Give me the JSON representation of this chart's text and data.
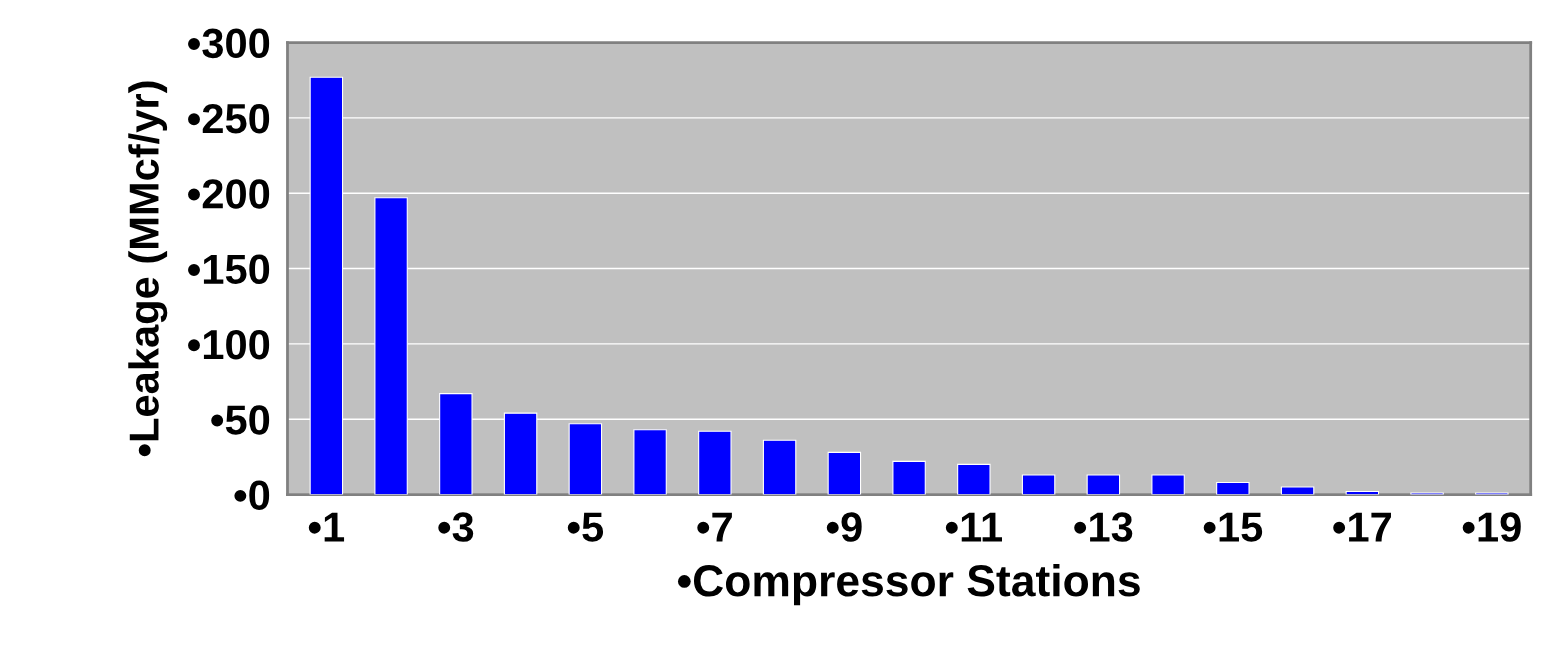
{
  "chart_data": {
    "type": "bar",
    "xlabel": "•Compressor Stations",
    "ylabel": "•Leakage (MMcf/yr)",
    "categories": [
      "•1",
      null,
      "•3",
      null,
      "•5",
      null,
      "•7",
      null,
      "•9",
      null,
      "•11",
      null,
      "•13",
      null,
      "•15",
      null,
      "•17",
      null,
      "•19"
    ],
    "values": [
      277,
      197,
      67,
      54,
      47,
      43,
      42,
      36,
      28,
      22,
      20,
      13,
      13,
      13,
      8,
      5,
      2,
      1,
      1
    ],
    "color": "#0000ff",
    "ylim": [
      0,
      300
    ],
    "yticks": [
      {
        "value": 0,
        "label": "•0"
      },
      {
        "value": 50,
        "label": "•50"
      },
      {
        "value": 100,
        "label": "•100"
      },
      {
        "value": 150,
        "label": "•150"
      },
      {
        "value": 200,
        "label": "•200"
      },
      {
        "value": 250,
        "label": "•250"
      },
      {
        "value": 300,
        "label": "•300"
      }
    ],
    "grid": "y"
  }
}
